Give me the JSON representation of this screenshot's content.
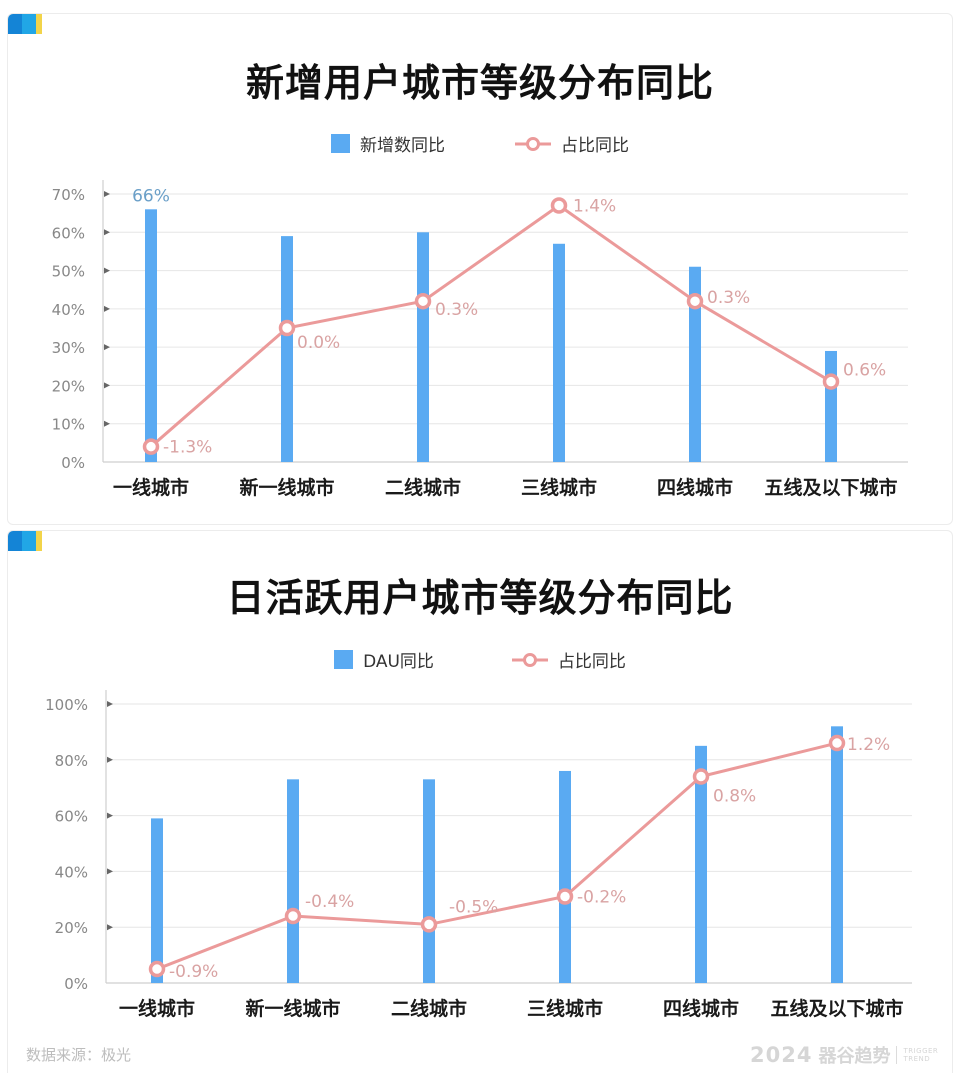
{
  "charts": [
    {
      "title": "新增用户城市等级分布同比",
      "legend": {
        "bar": "新增数同比",
        "line": "占比同比"
      }
    },
    {
      "title": "日活跃用户城市等级分布同比",
      "legend": {
        "bar": "DAU同比",
        "line": "占比同比"
      }
    }
  ],
  "footer": {
    "source": "数据来源：极光",
    "brand_year": "2024",
    "brand_name": "器谷趋势",
    "brand_en_1": "TRIGGER",
    "brand_en_2": "TREND"
  },
  "colors": {
    "bar": "#5aaaf2",
    "line": "#eb9a9a",
    "line_label": "#d9a3a3",
    "bar_label": "#6a9fc8",
    "axis_text": "#888888",
    "grid": "#e6e6e6"
  },
  "chart_data": [
    {
      "type": "bar+line",
      "title": "新增用户城市等级分布同比",
      "categories": [
        "一线城市",
        "新一线城市",
        "二线城市",
        "三线城市",
        "四线城市",
        "五线及以下城市"
      ],
      "series": [
        {
          "name": "新增数同比",
          "type": "bar",
          "values": [
            66,
            59,
            60,
            57,
            51,
            29
          ],
          "labels": [
            "66%",
            "",
            "",
            "",
            "",
            ""
          ]
        },
        {
          "name": "占比同比",
          "type": "line",
          "values": [
            4,
            35,
            42,
            67,
            42,
            21
          ],
          "labels": [
            "-1.3%",
            "0.0%",
            "0.3%",
            "1.4%",
            "0.3%",
            "0.6%"
          ]
        }
      ],
      "yticks": [
        "0%",
        "10%",
        "20%",
        "30%",
        "40%",
        "50%",
        "60%",
        "70%"
      ],
      "ylim": [
        0,
        70
      ],
      "grid": true,
      "legend_position": "top"
    },
    {
      "type": "bar+line",
      "title": "日活跃用户城市等级分布同比",
      "categories": [
        "一线城市",
        "新一线城市",
        "二线城市",
        "三线城市",
        "四线城市",
        "五线及以下城市"
      ],
      "series": [
        {
          "name": "DAU同比",
          "type": "bar",
          "values": [
            59,
            73,
            73,
            76,
            85,
            92
          ]
        },
        {
          "name": "占比同比",
          "type": "line",
          "values": [
            5,
            24,
            21,
            31,
            74,
            86
          ],
          "labels": [
            "-0.9%",
            "-0.4%",
            "-0.5%",
            "-0.2%",
            "0.8%",
            "1.2%"
          ]
        }
      ],
      "yticks": [
        "0%",
        "20%",
        "40%",
        "60%",
        "80%",
        "100%"
      ],
      "ylim": [
        0,
        100
      ],
      "grid": true,
      "legend_position": "top"
    }
  ]
}
